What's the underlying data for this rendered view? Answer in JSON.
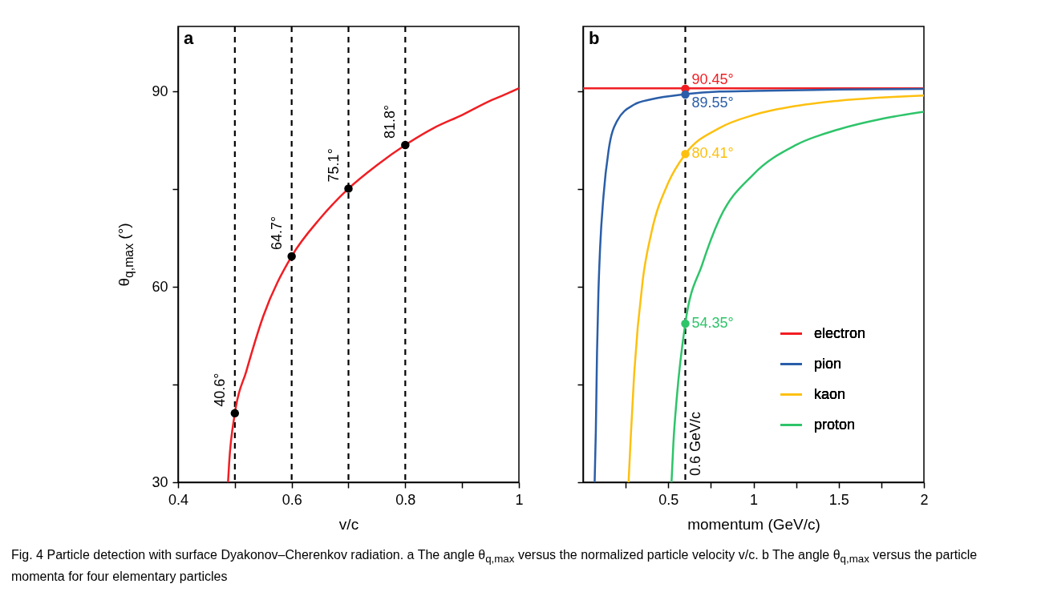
{
  "chart_data": [
    {
      "type": "line",
      "xlabel": "v/c",
      "ylabel": "θ$_{q,max}$ (°)",
      "xlim": [
        0.4,
        1
      ],
      "ylim": [
        30,
        100
      ],
      "xticks": [
        0.4,
        {
          "value": 0.5,
          "label": null
        },
        0.6,
        {
          "value": 0.7,
          "label": null
        },
        0.8,
        {
          "value": 0.9,
          "label": null
        },
        1
      ],
      "yticks": [
        30,
        {
          "value": 45,
          "label": null
        },
        60,
        {
          "value": 75,
          "label": null
        },
        90
      ],
      "series": [
        {
          "color": "#f01e23",
          "x": [
            0.488,
            0.49,
            0.5,
            0.52,
            0.55,
            0.6,
            0.65,
            0.7,
            0.75,
            0.8,
            0.85,
            0.9,
            0.95,
            0.98,
            1
          ],
          "values": [
            30,
            33,
            40.6,
            47,
            55.5,
            64.7,
            70.5,
            75.1,
            78.7,
            81.8,
            84.4,
            86.4,
            88.6,
            89.7,
            90.5
          ]
        },
        {
          "type": "scatter",
          "color": "#000000",
          "x": [
            0.5,
            0.6,
            0.7,
            0.8
          ],
          "values": [
            40.6,
            64.7,
            75.1,
            81.8
          ],
          "value_labels": [
            "40.6°",
            "64.7°",
            "75.1°",
            "81.8°"
          ]
        }
      ],
      "ref_lines": [
        {
          "axis": "x",
          "value": 0.5,
          "color": "#000000",
          "line_style": "dashed"
        },
        {
          "axis": "x",
          "value": 0.6,
          "color": "#000000",
          "line_style": "dashed"
        },
        {
          "axis": "x",
          "value": 0.7,
          "color": "#000000",
          "line_style": "dashed"
        },
        {
          "axis": "x",
          "value": 0.8,
          "color": "#000000",
          "line_style": "dashed"
        }
      ],
      "annotations": [
        "a",
        "Fig. 4  Particle detection with surface Dyakonov–Cherenkov radiation. a The angle θ$_{q,max}$ versus the normalized particle velocity v/c. b The angle θ$_{q,max}$ versus the particle momenta for four elementary particles"
      ]
    },
    {
      "type": "line",
      "xlabel": "momentum (GeV/c)",
      "xlim": [
        0,
        2
      ],
      "ylim": [
        30,
        100
      ],
      "tick_labels": "x",
      "legend": "bottom right",
      "xticks": [
        {
          "value": 0.25,
          "label": null
        },
        0.5,
        {
          "value": 0.75,
          "label": null
        },
        1,
        {
          "value": 1.25,
          "label": null
        },
        1.5,
        {
          "value": 1.75,
          "label": null
        },
        2
      ],
      "yticks": [
        {
          "value": 30,
          "label": null
        },
        {
          "value": 45,
          "label": null
        },
        {
          "value": 60,
          "label": null
        },
        {
          "value": 75,
          "label": null
        },
        {
          "value": 90,
          "label": null
        }
      ],
      "series": [
        {
          "name": "electron",
          "color": "#f01e23",
          "x": [
            0,
            2
          ],
          "values": [
            90.5,
            90.5
          ]
        },
        {
          "name": "pion",
          "color": "#2a5ea8",
          "x": [
            0.068,
            0.075,
            0.082,
            0.09,
            0.1,
            0.12,
            0.15,
            0.2,
            0.3,
            0.4,
            0.6,
            0.8,
            1,
            1.5,
            2
          ],
          "values": [
            30,
            38,
            50,
            59,
            66,
            74,
            81,
            85.5,
            88,
            88.8,
            89.6,
            90,
            90.1,
            90.3,
            90.4
          ]
        },
        {
          "name": "kaon",
          "color": "#fdc010",
          "x": [
            0.267,
            0.28,
            0.3,
            0.35,
            0.4,
            0.5,
            0.6,
            0.8,
            1,
            1.25,
            1.5,
            2
          ],
          "values": [
            30,
            37,
            46.7,
            61,
            68.2,
            76,
            80.4,
            84.4,
            86.4,
            87.8,
            88.6,
            89.4
          ]
        },
        {
          "name": "proton",
          "color": "#2ec46a",
          "x": [
            0.519,
            0.53,
            0.55,
            0.6,
            0.7,
            0.8,
            1,
            1.25,
            1.5,
            1.75,
            2
          ],
          "values": [
            30,
            36,
            43,
            54.4,
            63.5,
            70.4,
            77.3,
            81.8,
            84.2,
            85.8,
            86.9
          ]
        },
        {
          "type": "scatter",
          "x": [
            0.6,
            0.6,
            0.6,
            0.6
          ],
          "values": [
            90.45,
            89.55,
            80.41,
            54.35
          ],
          "colors": [
            "#f01e23",
            "#2a5ea8",
            "#fdc010",
            "#2ec46a"
          ],
          "value_labels": [
            "90.45°",
            "89.55°",
            "80.41°",
            "54.35°"
          ]
        }
      ],
      "ref_lines": [
        {
          "axis": "x",
          "value": 0.6,
          "label": "0.6 GeV/c",
          "color": "#000000",
          "line_style": "dashed"
        }
      ],
      "annotations": [
        "b"
      ]
    }
  ]
}
